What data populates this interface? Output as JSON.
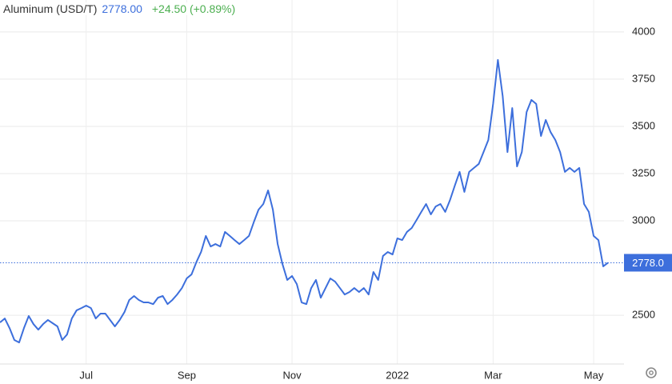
{
  "chart_data": {
    "type": "line",
    "title": "Aluminum (USD/T)",
    "price": "2778.00",
    "change": "+24.50 (+0.89%)",
    "current": {
      "value": 2778,
      "label": "2778.0"
    },
    "categories": [
      null,
      null,
      null,
      null,
      null,
      null,
      null,
      null,
      null,
      null,
      null,
      null,
      null,
      null,
      null,
      null,
      null,
      null,
      "Jul",
      null,
      null,
      null,
      null,
      null,
      null,
      null,
      null,
      null,
      null,
      null,
      null,
      null,
      null,
      null,
      null,
      null,
      null,
      null,
      null,
      "Sep",
      null,
      null,
      null,
      null,
      null,
      null,
      null,
      null,
      null,
      null,
      null,
      null,
      null,
      null,
      null,
      null,
      null,
      null,
      null,
      null,
      null,
      "Nov",
      null,
      null,
      null,
      null,
      null,
      null,
      null,
      null,
      null,
      null,
      null,
      null,
      null,
      null,
      null,
      null,
      null,
      null,
      null,
      null,
      null,
      "2022",
      null,
      null,
      null,
      null,
      null,
      null,
      null,
      null,
      null,
      null,
      null,
      null,
      null,
      null,
      null,
      null,
      null,
      null,
      null,
      "Mar",
      null,
      null,
      null,
      null,
      null,
      null,
      null,
      null,
      null,
      null,
      null,
      null,
      null,
      null,
      null,
      null,
      null,
      null,
      null,
      null,
      "May",
      null,
      null,
      null
    ],
    "series": [
      {
        "name": "Aluminum (USD/T)",
        "color": "#3d6fdc",
        "values": [
          2462,
          2483,
          2432,
          2369,
          2356,
          2432,
          2496,
          2453,
          2424,
          2453,
          2475,
          2458,
          2441,
          2369,
          2398,
          2483,
          2526,
          2538,
          2551,
          2538,
          2483,
          2509,
          2509,
          2475,
          2441,
          2475,
          2517,
          2581,
          2602,
          2581,
          2568,
          2568,
          2559,
          2593,
          2602,
          2559,
          2581,
          2610,
          2644,
          2695,
          2716,
          2780,
          2835,
          2920,
          2864,
          2877,
          2864,
          2941,
          2920,
          2898,
          2877,
          2898,
          2920,
          2992,
          3059,
          3089,
          3161,
          3059,
          2877,
          2771,
          2687,
          2708,
          2665,
          2568,
          2559,
          2644,
          2687,
          2593,
          2644,
          2695,
          2678,
          2644,
          2610,
          2623,
          2644,
          2623,
          2644,
          2610,
          2729,
          2687,
          2814,
          2835,
          2822,
          2907,
          2898,
          2941,
          2962,
          3004,
          3047,
          3089,
          3034,
          3076,
          3089,
          3047,
          3110,
          3186,
          3259,
          3153,
          3259,
          3280,
          3301,
          3364,
          3428,
          3619,
          3852,
          3661,
          3364,
          3597,
          3288,
          3364,
          3576,
          3640,
          3619,
          3449,
          3534,
          3470,
          3428,
          3364,
          3259,
          3280,
          3259,
          3280,
          3089,
          3047,
          2920,
          2898,
          2759,
          2778
        ]
      }
    ],
    "ylim": [
      2242,
      4169
    ],
    "yticks": [
      2500,
      3000,
      3250,
      3500,
      3750,
      4000
    ],
    "grid": true
  }
}
